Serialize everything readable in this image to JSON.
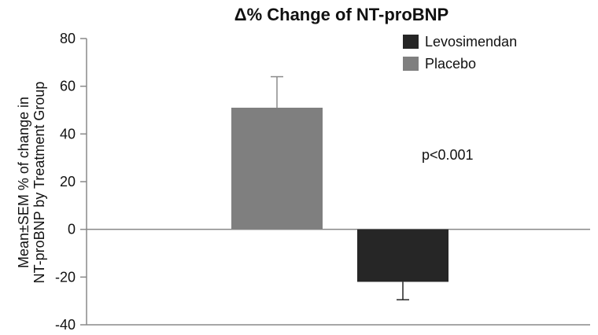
{
  "chart_data": {
    "type": "bar",
    "title": "Δ% Change of NT-proBNP",
    "ylabel_lines": [
      "Mean±SEM % of change in",
      "NT-proBNP by Treatment Group"
    ],
    "xlabel": "",
    "ylim": [
      -40,
      80
    ],
    "yticks": [
      80,
      60,
      40,
      20,
      0,
      -20,
      -40
    ],
    "grid": false,
    "legend_position": "top-right",
    "series": [
      {
        "name": "Placebo",
        "value": 51,
        "error": 13,
        "color": "#7f7f7f"
      },
      {
        "name": "Levosimendan",
        "value": -22,
        "error": 7.5,
        "color": "#262626"
      }
    ],
    "legend": [
      {
        "label": "Levosimendan",
        "color": "#262626"
      },
      {
        "label": "Placebo",
        "color": "#7f7f7f"
      }
    ],
    "annotation": "p<0.001"
  }
}
